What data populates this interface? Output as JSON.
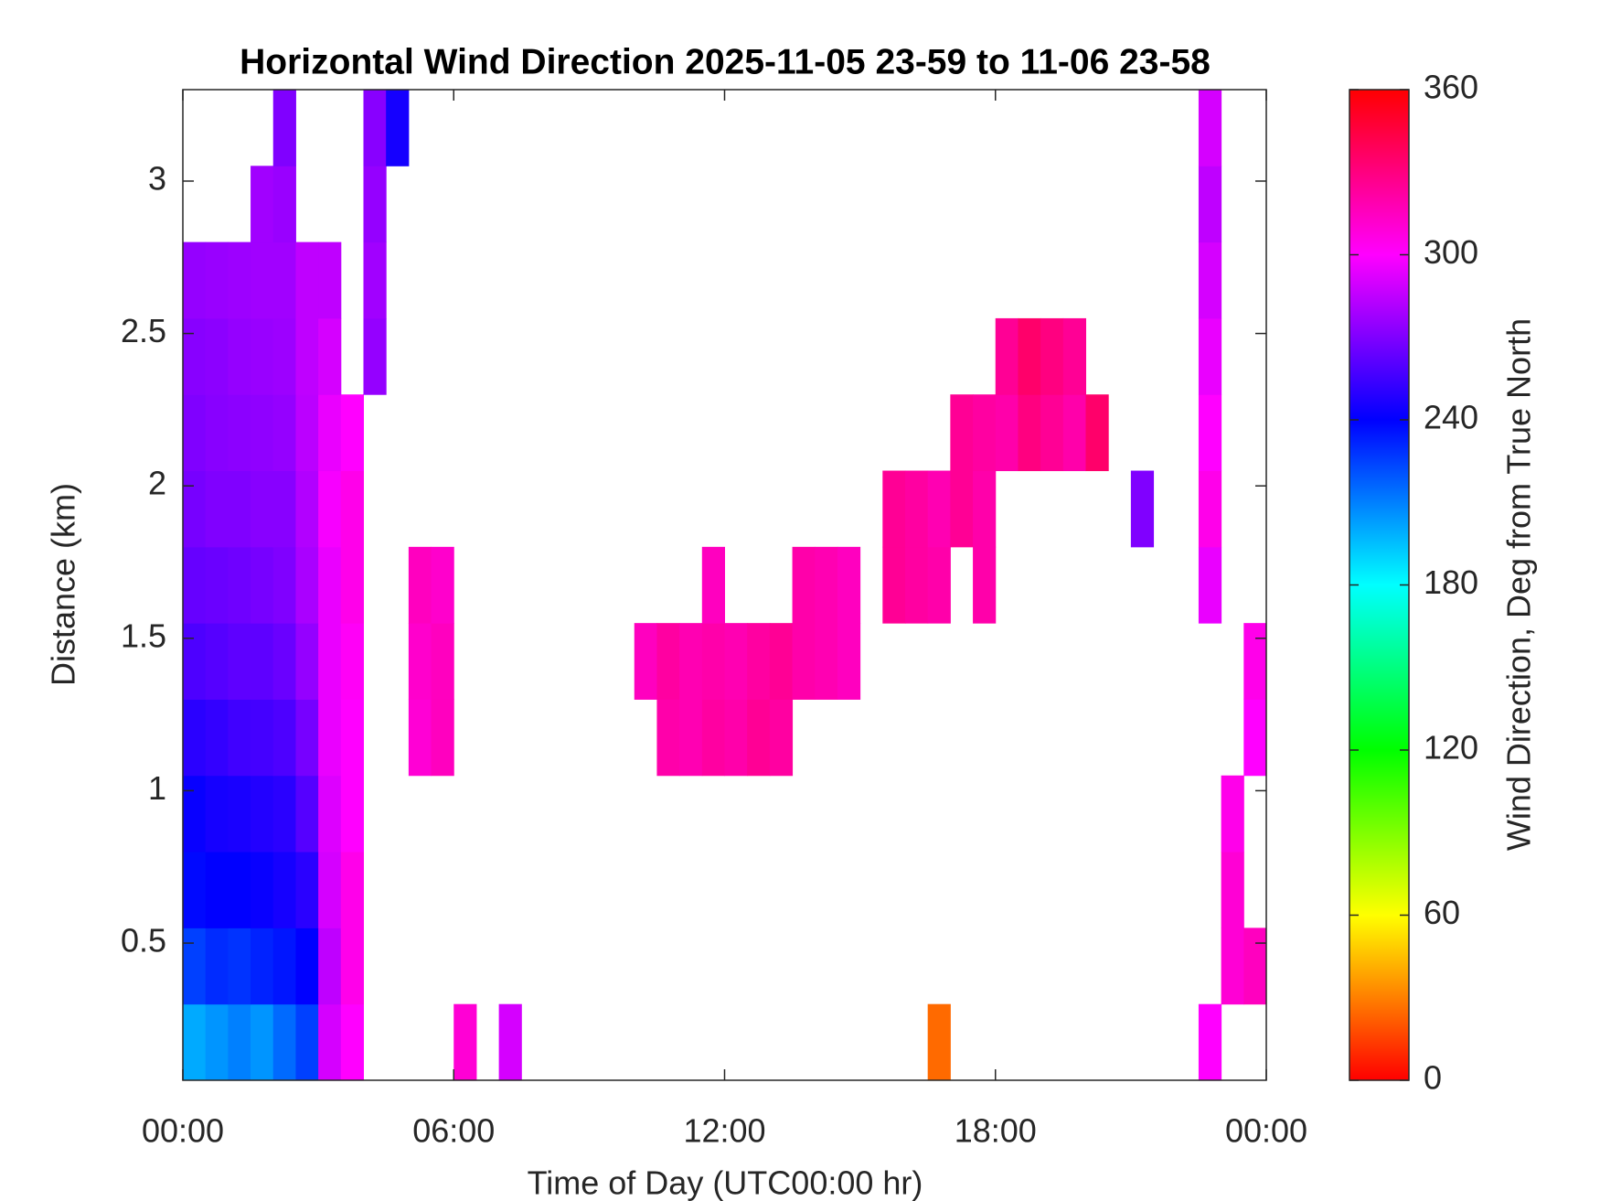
{
  "chart_data": {
    "type": "heatmap",
    "title": "Horizontal Wind Direction 2025-11-05 23-59 to 11-06 23-58",
    "x_label": "Time of Day (UTC00:00 hr)",
    "y_label": "Distance (km)",
    "colorbar_label": "Wind Direction, Deg from True North",
    "colormap": "hsv",
    "xlim": [
      0,
      24
    ],
    "ylim": [
      0.05,
      3.3
    ],
    "xticks": [
      {
        "value": 0,
        "label": "00:00"
      },
      {
        "value": 6,
        "label": "06:00"
      },
      {
        "value": 12,
        "label": "12:00"
      },
      {
        "value": 18,
        "label": "18:00"
      },
      {
        "value": 24,
        "label": "00:00"
      }
    ],
    "yticks": [
      0.5,
      1,
      1.5,
      2,
      2.5,
      3
    ],
    "clim": [
      0,
      360
    ],
    "cticks": [
      0,
      60,
      120,
      180,
      240,
      300,
      360
    ],
    "x": [
      0,
      0.5,
      1,
      1.5,
      2,
      2.5,
      3,
      3.5,
      4,
      4.5,
      5,
      5.5,
      6,
      6.5,
      7,
      7.5,
      8,
      8.5,
      9,
      9.5,
      10,
      10.5,
      11,
      11.5,
      12,
      12.5,
      13,
      13.5,
      14,
      14.5,
      15,
      15.5,
      16,
      16.5,
      17,
      17.5,
      18,
      18.5,
      19,
      19.5,
      20,
      20.5,
      21,
      21.5,
      22,
      22.5,
      23,
      23.5
    ],
    "y": [
      0.05,
      0.3,
      0.55,
      0.8,
      1.05,
      1.3,
      1.55,
      1.8,
      2.05,
      2.3,
      2.55,
      2.8,
      3.05
    ],
    "values": [
      [
        200,
        205,
        210,
        205,
        215,
        225,
        290,
        300,
        null,
        null,
        null,
        null,
        310,
        null,
        290,
        null,
        null,
        null,
        null,
        null,
        null,
        null,
        null,
        null,
        null,
        null,
        null,
        null,
        null,
        null,
        null,
        null,
        null,
        25,
        null,
        null,
        null,
        null,
        null,
        null,
        null,
        null,
        null,
        null,
        null,
        300,
        null,
        null
      ],
      [
        225,
        230,
        228,
        232,
        235,
        240,
        285,
        305,
        null,
        null,
        null,
        null,
        null,
        null,
        null,
        null,
        null,
        null,
        null,
        null,
        null,
        null,
        null,
        null,
        null,
        null,
        null,
        null,
        null,
        null,
        null,
        null,
        null,
        null,
        null,
        null,
        null,
        null,
        null,
        null,
        null,
        null,
        null,
        null,
        null,
        null,
        310,
        315
      ],
      [
        238,
        240,
        240,
        242,
        245,
        250,
        290,
        305,
        null,
        null,
        null,
        null,
        null,
        null,
        null,
        null,
        null,
        null,
        null,
        null,
        null,
        null,
        null,
        null,
        null,
        null,
        null,
        null,
        null,
        null,
        null,
        null,
        null,
        null,
        null,
        null,
        null,
        null,
        null,
        null,
        null,
        null,
        null,
        null,
        null,
        null,
        310,
        null
      ],
      [
        242,
        245,
        246,
        248,
        250,
        260,
        292,
        300,
        null,
        null,
        null,
        null,
        null,
        null,
        null,
        null,
        null,
        null,
        null,
        null,
        null,
        null,
        null,
        null,
        null,
        null,
        null,
        null,
        null,
        null,
        null,
        null,
        null,
        null,
        null,
        null,
        null,
        null,
        null,
        null,
        null,
        null,
        null,
        null,
        null,
        null,
        305,
        null
      ],
      [
        250,
        252,
        255,
        256,
        258,
        268,
        295,
        300,
        null,
        null,
        310,
        315,
        null,
        null,
        null,
        null,
        null,
        null,
        null,
        null,
        null,
        320,
        318,
        322,
        320,
        325,
        322,
        null,
        null,
        null,
        null,
        null,
        null,
        null,
        null,
        null,
        null,
        null,
        null,
        null,
        null,
        null,
        null,
        null,
        null,
        null,
        null,
        300
      ],
      [
        258,
        260,
        262,
        262,
        265,
        275,
        295,
        302,
        null,
        null,
        312,
        315,
        null,
        null,
        null,
        null,
        null,
        null,
        null,
        null,
        315,
        322,
        318,
        320,
        318,
        322,
        325,
        320,
        318,
        315,
        null,
        null,
        null,
        null,
        null,
        null,
        null,
        null,
        null,
        null,
        null,
        null,
        null,
        null,
        null,
        null,
        null,
        305
      ],
      [
        264,
        265,
        266,
        268,
        270,
        280,
        295,
        305,
        null,
        null,
        315,
        312,
        null,
        null,
        null,
        null,
        null,
        null,
        null,
        null,
        null,
        null,
        null,
        315,
        null,
        null,
        null,
        320,
        318,
        315,
        null,
        325,
        322,
        320,
        null,
        320,
        null,
        null,
        null,
        null,
        null,
        null,
        null,
        null,
        null,
        295,
        null,
        null
      ],
      [
        268,
        270,
        270,
        272,
        272,
        282,
        298,
        305,
        null,
        null,
        null,
        null,
        null,
        null,
        null,
        null,
        null,
        null,
        null,
        null,
        null,
        null,
        null,
        null,
        null,
        null,
        null,
        null,
        null,
        null,
        null,
        325,
        322,
        318,
        325,
        320,
        null,
        null,
        null,
        null,
        null,
        null,
        270,
        null,
        null,
        305,
        null,
        null
      ],
      [
        270,
        272,
        273,
        274,
        275,
        284,
        295,
        300,
        null,
        null,
        null,
        null,
        null,
        null,
        null,
        null,
        null,
        null,
        null,
        null,
        null,
        null,
        null,
        null,
        null,
        null,
        null,
        null,
        null,
        null,
        null,
        null,
        null,
        null,
        325,
        322,
        320,
        330,
        325,
        320,
        335,
        null,
        null,
        null,
        null,
        300,
        null,
        null
      ],
      [
        272,
        273,
        275,
        276,
        277,
        285,
        290,
        null,
        275,
        null,
        null,
        null,
        null,
        null,
        null,
        null,
        null,
        null,
        null,
        null,
        null,
        null,
        null,
        null,
        null,
        null,
        null,
        null,
        null,
        null,
        null,
        null,
        null,
        null,
        null,
        null,
        325,
        335,
        330,
        325,
        null,
        null,
        null,
        null,
        null,
        295,
        null,
        null
      ],
      [
        275,
        276,
        277,
        278,
        278,
        285,
        285,
        null,
        278,
        null,
        null,
        null,
        null,
        null,
        null,
        null,
        null,
        null,
        null,
        null,
        null,
        null,
        null,
        null,
        null,
        null,
        null,
        null,
        null,
        null,
        null,
        null,
        null,
        null,
        null,
        null,
        null,
        null,
        null,
        null,
        null,
        null,
        null,
        null,
        null,
        290,
        null,
        null
      ],
      [
        null,
        null,
        null,
        278,
        276,
        null,
        null,
        null,
        275,
        null,
        null,
        null,
        null,
        null,
        null,
        null,
        null,
        null,
        null,
        null,
        null,
        null,
        null,
        null,
        null,
        null,
        null,
        null,
        null,
        null,
        null,
        null,
        null,
        null,
        null,
        null,
        null,
        null,
        null,
        null,
        null,
        null,
        null,
        null,
        null,
        285,
        null,
        null
      ],
      [
        null,
        null,
        null,
        null,
        270,
        null,
        null,
        null,
        272,
        245,
        null,
        null,
        null,
        null,
        null,
        null,
        null,
        null,
        null,
        null,
        null,
        null,
        null,
        null,
        null,
        null,
        null,
        null,
        null,
        null,
        null,
        null,
        null,
        null,
        null,
        null,
        null,
        null,
        null,
        null,
        null,
        null,
        null,
        null,
        null,
        290,
        null,
        null
      ]
    ]
  }
}
